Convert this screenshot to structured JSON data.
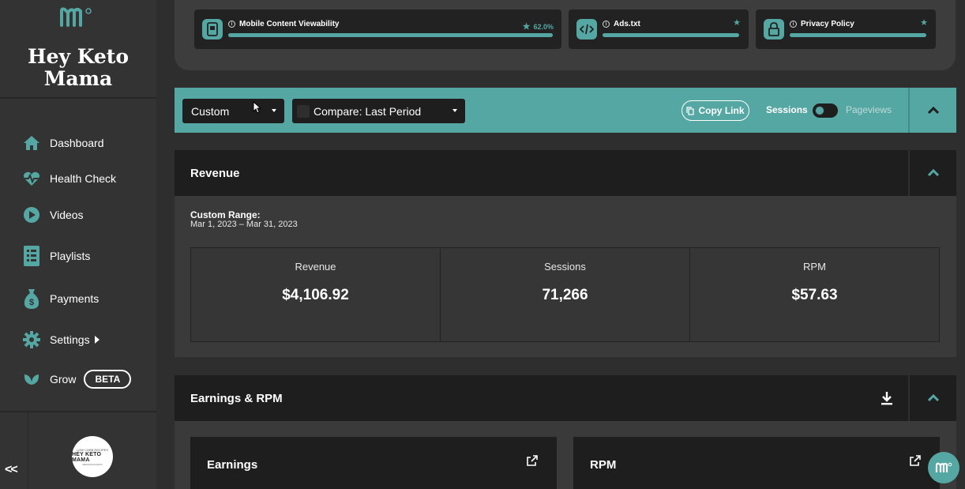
{
  "sidebar": {
    "site_name": "Hey Keto Mama",
    "nav": [
      {
        "label": "Dashboard",
        "icon": "home-icon"
      },
      {
        "label": "Health Check",
        "icon": "heartbeat-icon"
      },
      {
        "label": "Videos",
        "icon": "play-icon"
      },
      {
        "label": "Playlists",
        "icon": "list-icon"
      },
      {
        "label": "Payments",
        "icon": "money-bag-icon"
      },
      {
        "label": "Settings",
        "icon": "gear-icon"
      },
      {
        "label": "Grow",
        "icon": "leaf-icon",
        "badge": "BETA"
      }
    ],
    "collapse_label": "<<",
    "avatar": {
      "top": "LOW CARB RECIPES",
      "main": "HEY KETO MAMA",
      "sub": "DELICIOUS KETO"
    }
  },
  "health_checks": [
    {
      "title": "Mobile Content Viewability",
      "value": "62.0%",
      "progress": 1.0,
      "icon": "mobile-icon"
    },
    {
      "title": "Ads.txt",
      "progress": 1.0,
      "icon": "code-icon"
    },
    {
      "title": "Privacy Policy",
      "progress": 1.0,
      "icon": "lock-icon"
    }
  ],
  "toolbar": {
    "range_select": "Custom",
    "compare_select": "Compare: Last Period",
    "copy_link": "Copy Link",
    "sessions_label": "Sessions",
    "pageviews_label": "Pageviews"
  },
  "revenue": {
    "title": "Revenue",
    "range_title": "Custom Range:",
    "range_dates": "Mar 1, 2023 – Mar 31, 2023",
    "metrics": [
      {
        "label": "Revenue",
        "value": "$4,106.92"
      },
      {
        "label": "Sessions",
        "value": "71,266"
      },
      {
        "label": "RPM",
        "value": "$57.63"
      }
    ]
  },
  "earnings": {
    "title": "Earnings & RPM",
    "cards": [
      {
        "title": "Earnings"
      },
      {
        "title": "RPM"
      }
    ]
  },
  "colors": {
    "accent": "#55a7a3",
    "panel": "#1e1e1e",
    "background": "#2e2e2e"
  }
}
